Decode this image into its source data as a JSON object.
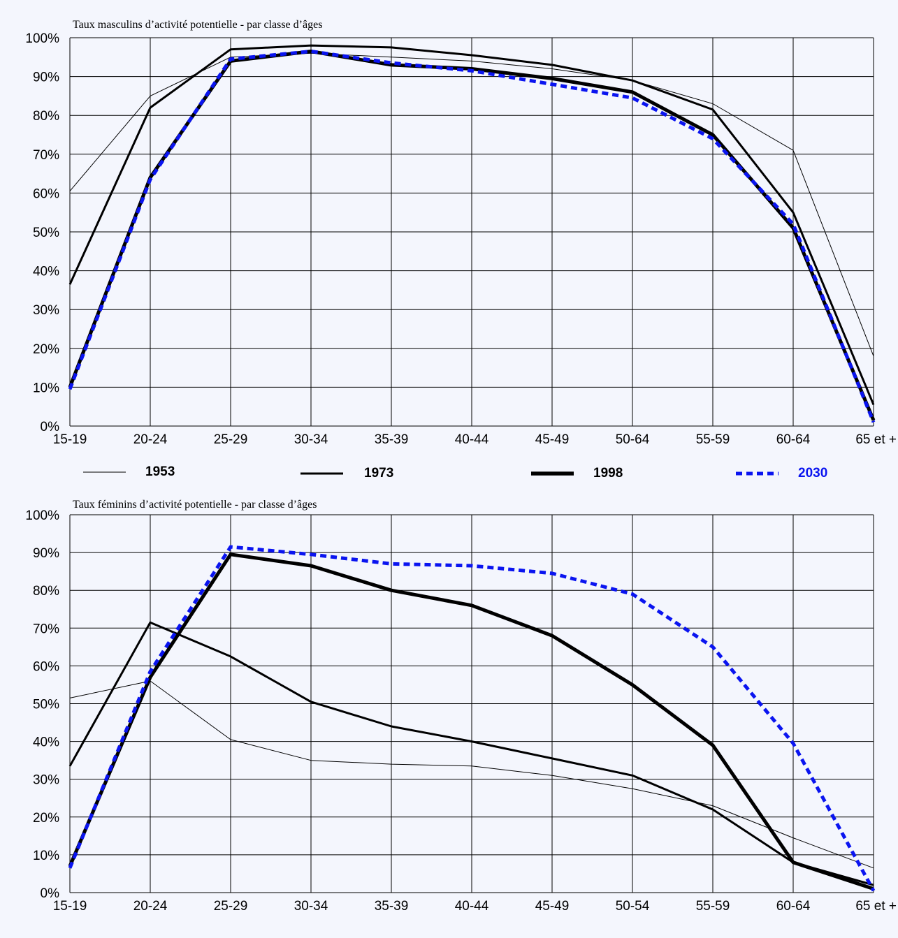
{
  "colors": {
    "background": "#f4f6fd",
    "grid": "#000000",
    "series_black": "#000000",
    "series_2030": "#0a14f0"
  },
  "legend": {
    "items": [
      {
        "label": "1953",
        "color": "#000000",
        "style": "thin solid"
      },
      {
        "label": "1973",
        "color": "#000000",
        "style": "medium solid"
      },
      {
        "label": "1998",
        "color": "#000000",
        "style": "thick solid"
      },
      {
        "label": "2030",
        "color": "#0a14f0",
        "style": "dashed"
      }
    ]
  },
  "chart_data": [
    {
      "type": "line",
      "title": "Taux masculins d’activité potentielle - par classe d’âges",
      "categories": [
        "15-19",
        "20-24",
        "25-29",
        "30-34",
        "35-39",
        "40-44",
        "45-49",
        "50-64",
        "55-59",
        "60-64",
        "65 et +"
      ],
      "y_ticks": [
        "0%",
        "10%",
        "20%",
        "30%",
        "40%",
        "50%",
        "60%",
        "70%",
        "80%",
        "90%",
        "100%"
      ],
      "ylim": [
        0,
        100
      ],
      "grid": true,
      "series": [
        {
          "name": "1953",
          "values": [
            60.5,
            85,
            95,
            96,
            95,
            94,
            92,
            89,
            83,
            71,
            18
          ]
        },
        {
          "name": "1973",
          "values": [
            36.5,
            82,
            97,
            98,
            97.5,
            95.5,
            93,
            89,
            81.5,
            55,
            5.5
          ]
        },
        {
          "name": "1998",
          "values": [
            10,
            64,
            94,
            96.5,
            93,
            92,
            89.5,
            86,
            75,
            51,
            1.5
          ]
        },
        {
          "name": "2030",
          "values": [
            9.5,
            63.5,
            94.5,
            96.5,
            93.5,
            91.5,
            88,
            84.5,
            74,
            52,
            1
          ]
        }
      ]
    },
    {
      "type": "line",
      "title": "Taux féminins d’activité potentielle - par classe d’âges",
      "categories": [
        "15-19",
        "20-24",
        "25-29",
        "30-34",
        "35-39",
        "40-44",
        "45-49",
        "50-54",
        "55-59",
        "60-64",
        "65 et +"
      ],
      "y_ticks": [
        "0%",
        "10%",
        "20%",
        "30%",
        "40%",
        "50%",
        "60%",
        "70%",
        "80%",
        "90%",
        "100%"
      ],
      "ylim": [
        0,
        100
      ],
      "grid": true,
      "series": [
        {
          "name": "1953",
          "values": [
            51.5,
            56,
            40.5,
            35,
            34,
            33.5,
            31,
            27.5,
            23,
            14.5,
            6.5
          ]
        },
        {
          "name": "1973",
          "values": [
            33.5,
            71.5,
            62.5,
            50.5,
            44,
            40,
            35.5,
            31,
            22,
            8,
            2
          ]
        },
        {
          "name": "1998",
          "values": [
            7,
            57,
            89.5,
            86.5,
            80,
            76,
            68,
            55,
            39,
            8,
            1
          ]
        },
        {
          "name": "2030",
          "values": [
            6.5,
            58.5,
            91.5,
            89.5,
            87,
            86.5,
            84.5,
            79,
            65,
            39.5,
            0.5
          ]
        }
      ]
    }
  ]
}
